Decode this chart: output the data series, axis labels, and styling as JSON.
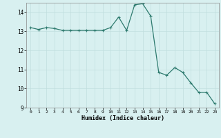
{
  "x": [
    0,
    1,
    2,
    3,
    4,
    5,
    6,
    7,
    8,
    9,
    10,
    11,
    12,
    13,
    14,
    15,
    16,
    17,
    18,
    19,
    20,
    21,
    22,
    23
  ],
  "y": [
    13.2,
    13.1,
    13.2,
    13.15,
    13.05,
    13.05,
    13.05,
    13.05,
    13.05,
    13.05,
    13.2,
    13.75,
    13.05,
    14.4,
    14.45,
    13.8,
    10.85,
    10.7,
    11.1,
    10.85,
    10.3,
    9.8,
    9.8,
    9.2
  ],
  "xlabel": "Humidex (Indice chaleur)",
  "ylim": [
    9,
    14.5
  ],
  "xlim_min": -0.5,
  "xlim_max": 23.5,
  "yticks": [
    9,
    10,
    11,
    12,
    13,
    14
  ],
  "xticks": [
    0,
    1,
    2,
    3,
    4,
    5,
    6,
    7,
    8,
    9,
    10,
    11,
    12,
    13,
    14,
    15,
    16,
    17,
    18,
    19,
    20,
    21,
    22,
    23
  ],
  "line_color": "#2d7a6e",
  "marker_color": "#2d7a6e",
  "bg_color": "#d8f0f0",
  "grid_color": "#c0dede",
  "axis_color": "#888888",
  "font_color": "#000000"
}
